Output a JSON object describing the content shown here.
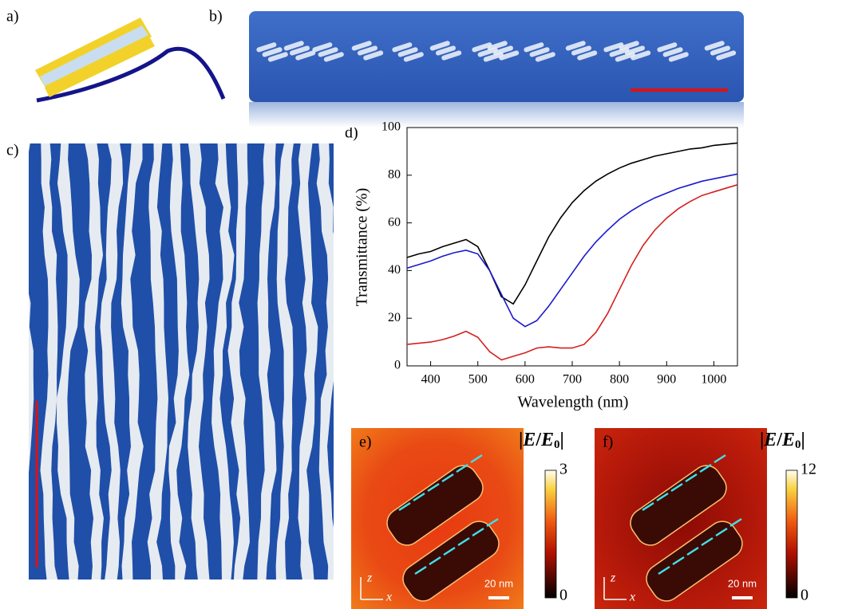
{
  "panel_labels": [
    "a)",
    "b)",
    "c)",
    "d)",
    "e)",
    "f)"
  ],
  "chart_data": {
    "type": "line",
    "xlabel": "Wavelength (nm)",
    "ylabel": "Transmittance (%)",
    "xlim": [
      350,
      1050
    ],
    "ylim": [
      0,
      100
    ],
    "xticks": [
      400,
      500,
      600,
      700,
      800,
      900,
      1000
    ],
    "yticks": [
      0,
      20,
      40,
      60,
      80,
      100
    ],
    "x": [
      350,
      375,
      400,
      425,
      450,
      475,
      500,
      525,
      550,
      575,
      600,
      625,
      650,
      675,
      700,
      725,
      750,
      775,
      800,
      825,
      850,
      875,
      900,
      925,
      950,
      975,
      1000,
      1025,
      1050
    ],
    "series": [
      {
        "color": "#000000",
        "values": [
          45.5,
          47,
          48,
          50,
          51.5,
          53,
          50,
          40,
          29,
          26,
          34,
          44,
          54,
          62,
          68.5,
          73.5,
          77.5,
          80.5,
          83,
          85,
          86.5,
          88,
          89,
          90,
          91,
          91.5,
          92.5,
          93,
          93.5
        ]
      },
      {
        "color": "#1a1acc",
        "values": [
          41,
          42.5,
          44,
          46,
          47.5,
          48.5,
          47,
          40,
          30,
          20,
          16.5,
          19,
          25,
          32,
          39,
          46,
          52,
          57,
          61.5,
          65,
          68,
          70.5,
          72.5,
          74.5,
          76,
          77.5,
          78.5,
          79.5,
          80.5
        ]
      },
      {
        "color": "#d42020",
        "values": [
          9,
          9.5,
          10,
          11,
          12.5,
          14.5,
          12,
          6,
          2.5,
          4,
          5.5,
          7.5,
          8,
          7.5,
          7.5,
          9,
          14,
          22,
          32,
          42,
          50.5,
          57,
          62,
          66,
          69,
          71.5,
          73,
          74.5,
          76
        ]
      }
    ]
  },
  "field_maps": [
    {
      "colorbar_label": [
        "|",
        "E",
        "/",
        "E",
        "0",
        "|"
      ],
      "colorbar_max": "3",
      "colorbar_min": "0",
      "scale_bar": "20 nm",
      "axes": [
        "z",
        "x"
      ]
    },
    {
      "colorbar_label": [
        "|",
        "E",
        "/",
        "E",
        "0",
        "|"
      ],
      "colorbar_max": "12",
      "colorbar_min": "0",
      "scale_bar": "20 nm",
      "axes": [
        "z",
        "x"
      ]
    }
  ]
}
